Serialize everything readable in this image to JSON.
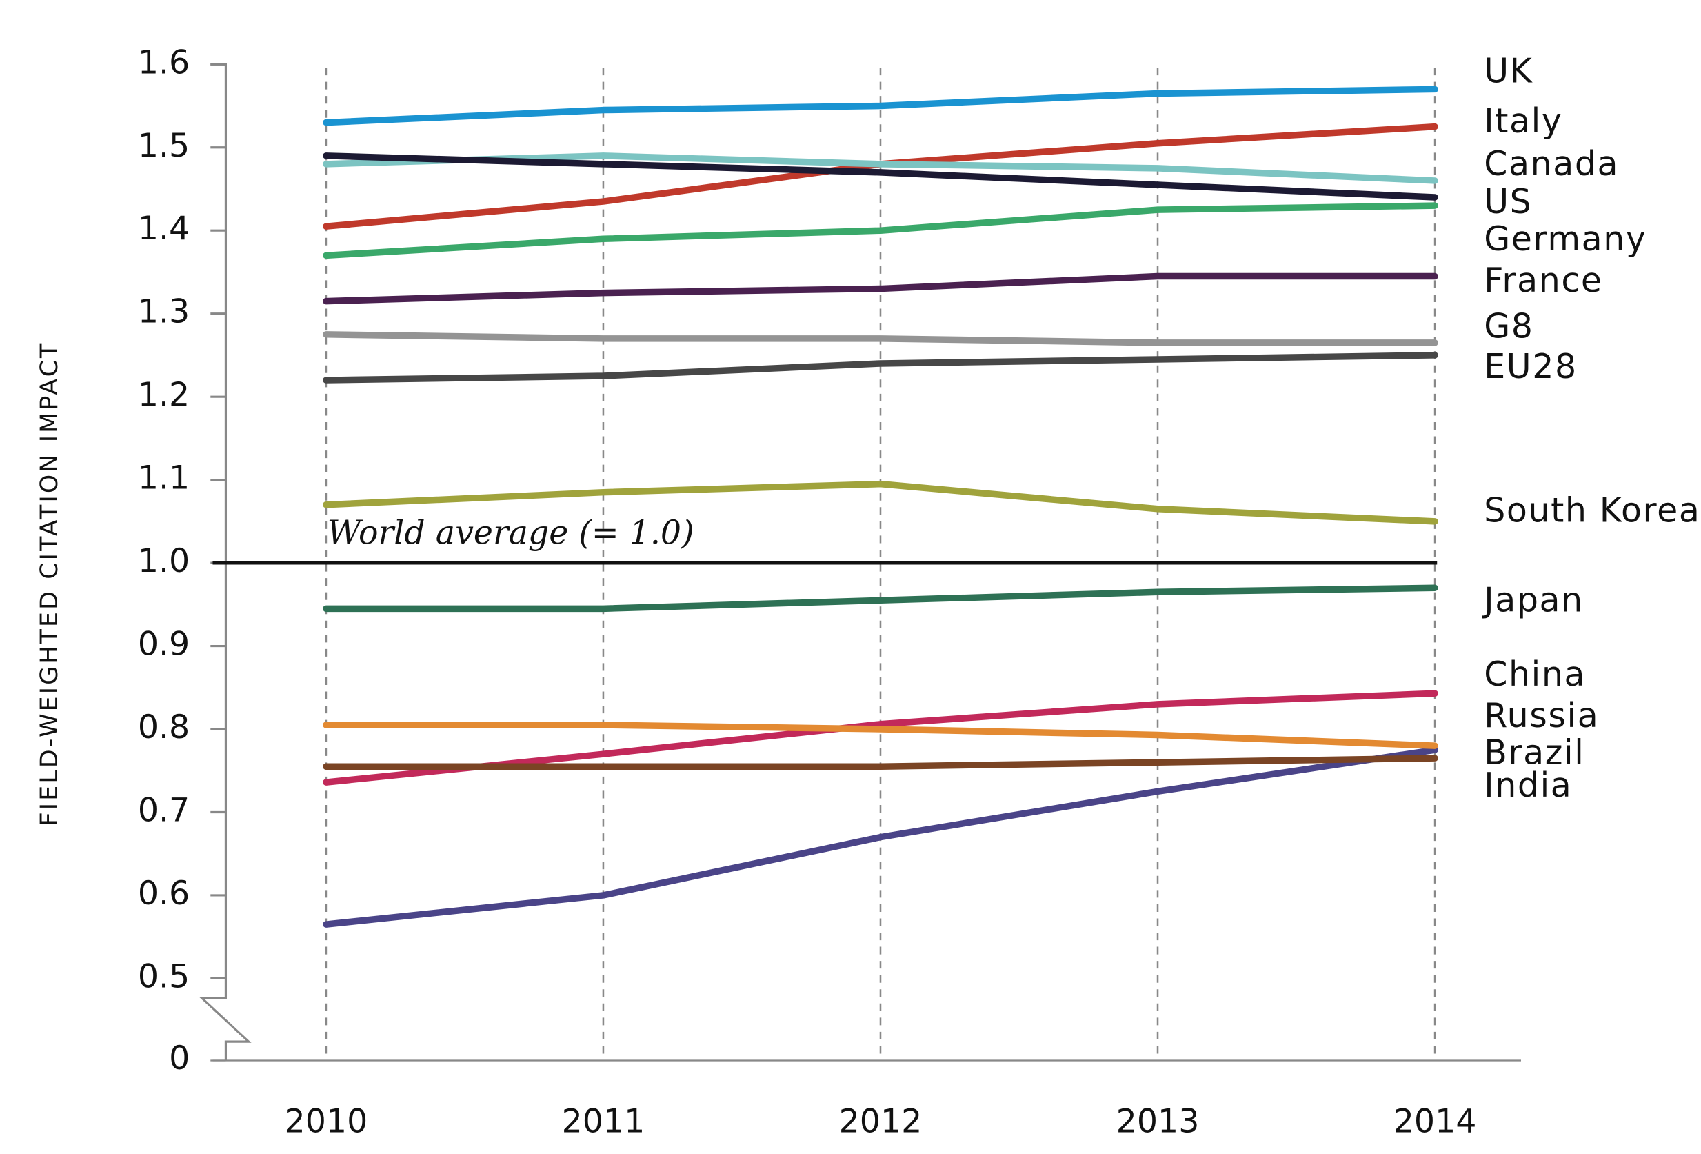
{
  "chart_data": {
    "type": "line",
    "y_label": "FIELD-WEIGHTED CITATION IMPACT",
    "annotation": "World average (= 1.0)",
    "reference_line": 1,
    "categories": [
      "2010",
      "2011",
      "2012",
      "2013",
      "2014"
    ],
    "ylim": [
      0,
      1.6
    ],
    "y_break": [
      0,
      0.5
    ],
    "yticks": [
      0,
      0.5,
      0.6,
      0.7,
      0.8,
      0.9,
      {
        "value": 1,
        "label": "1.0"
      },
      1.1,
      1.2,
      1.3,
      1.4,
      1.5,
      1.6
    ],
    "grid": "x",
    "series": [
      {
        "name": "UK",
        "color": "#1a93d1",
        "values": [
          1.53,
          1.545,
          1.55,
          1.565,
          1.57
        ]
      },
      {
        "name": "Italy",
        "color": "#c0392b",
        "values": [
          1.405,
          1.435,
          1.48,
          1.505,
          1.525
        ]
      },
      {
        "name": "Canada",
        "color": "#7cc4c2",
        "values": [
          1.48,
          1.49,
          1.48,
          1.475,
          1.46
        ]
      },
      {
        "name": "US",
        "color": "#1c1a33",
        "values": [
          1.49,
          1.48,
          1.47,
          1.455,
          1.44
        ]
      },
      {
        "name": "Germany",
        "color": "#3aa86a",
        "values": [
          1.37,
          1.39,
          1.4,
          1.425,
          1.43
        ]
      },
      {
        "name": "France",
        "color": "#4a2150",
        "values": [
          1.315,
          1.325,
          1.33,
          1.345,
          1.345
        ]
      },
      {
        "name": "G8",
        "color": "#949494",
        "values": [
          1.275,
          1.27,
          1.27,
          1.265,
          1.265
        ]
      },
      {
        "name": "EU28",
        "color": "#474747",
        "values": [
          1.22,
          1.225,
          1.24,
          1.245,
          1.25
        ]
      },
      {
        "name": "South Korea",
        "color": "#a0a33c",
        "values": [
          1.07,
          1.085,
          1.095,
          1.065,
          1.05
        ]
      },
      {
        "name": "Japan",
        "color": "#2e7155",
        "values": [
          0.945,
          0.945,
          0.955,
          0.965,
          0.97
        ]
      },
      {
        "name": "China",
        "color": "#c2295a",
        "values": [
          0.736,
          0.77,
          0.806,
          0.83,
          0.843
        ]
      },
      {
        "name": "Russia",
        "color": "#4a4488",
        "values": [
          0.565,
          0.6,
          0.67,
          0.725,
          0.775
        ]
      },
      {
        "name": "Brazil",
        "color": "#e38a32",
        "values": [
          0.805,
          0.805,
          0.8,
          0.793,
          0.78
        ]
      },
      {
        "name": "India",
        "color": "#7a4424",
        "values": [
          0.755,
          0.755,
          0.755,
          0.76,
          0.765
        ]
      }
    ]
  }
}
